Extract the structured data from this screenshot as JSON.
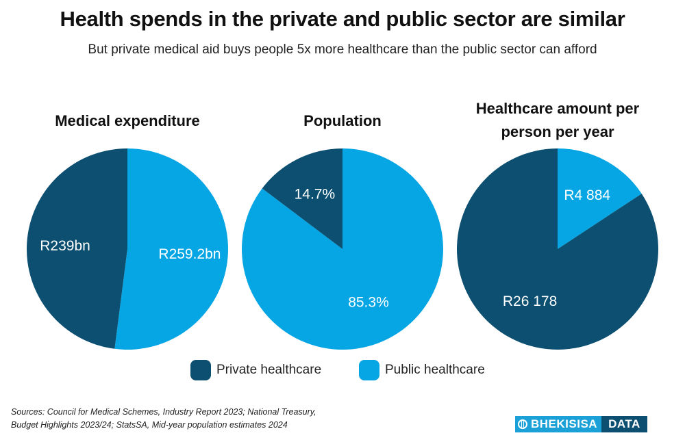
{
  "title": "Health spends in the private and public sector are similar",
  "subtitle": "But private medical aid buys people 5x more healthcare than the public sector can afford",
  "colors": {
    "private": "#0c4f70",
    "public": "#06a5e3"
  },
  "legend": {
    "private_label": "Private healthcare",
    "public_label": "Public healthcare"
  },
  "chart_data": [
    {
      "type": "pie",
      "title": "Medical expenditure",
      "slices": [
        {
          "name": "Private healthcare",
          "value": 239,
          "label": "R239bn"
        },
        {
          "name": "Public healthcare",
          "value": 259.2,
          "label": "R259.2bn"
        }
      ]
    },
    {
      "type": "pie",
      "title": "Population",
      "slices": [
        {
          "name": "Private healthcare",
          "value": 14.7,
          "label": "14.7%"
        },
        {
          "name": "Public healthcare",
          "value": 85.3,
          "label": "85.3%"
        }
      ]
    },
    {
      "type": "pie",
      "title": "Healthcare amount per person per year",
      "slices": [
        {
          "name": "Private healthcare",
          "value": 26178,
          "label": "R26 178"
        },
        {
          "name": "Public healthcare",
          "value": 4884,
          "label": "R4 884"
        }
      ]
    }
  ],
  "sources": {
    "line1": "Sources: Council for Medical Schemes, Industry Report 2023; National Treasury,",
    "line2": "Budget Highlights 2023/24; StatsSA, Mid-year population estimates 2024"
  },
  "logo": {
    "left": "BHEKISISA",
    "right": "DATA"
  }
}
